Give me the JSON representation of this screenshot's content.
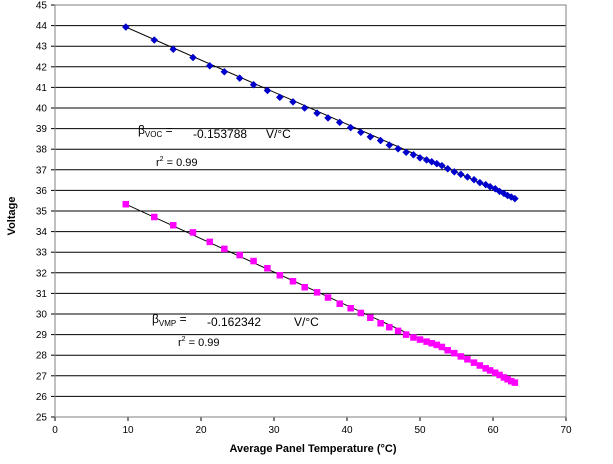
{
  "chart_data": {
    "type": "scatter",
    "xlabel": "Average Panel Temperature (°C)",
    "ylabel": "Voltage",
    "xlim": [
      0,
      70
    ],
    "ylim": [
      25,
      45
    ],
    "x_ticks": [
      0,
      10,
      20,
      30,
      40,
      50,
      60,
      70
    ],
    "y_ticks": [
      25,
      26,
      27,
      28,
      29,
      30,
      31,
      32,
      33,
      34,
      35,
      36,
      37,
      38,
      39,
      40,
      41,
      42,
      43,
      44,
      45
    ],
    "grid": "horizontal",
    "series": [
      {
        "color": "#0000cc",
        "marker": "diamond",
        "trendline": {
          "x": [
            9.7,
            63.2
          ],
          "y": [
            43.93,
            35.6
          ]
        },
        "x": [
          9.7,
          13.6,
          16.2,
          18.9,
          21.2,
          23.2,
          25.3,
          27.2,
          29.1,
          30.8,
          32.6,
          34.2,
          35.9,
          37.4,
          39.0,
          40.5,
          41.9,
          43.2,
          44.6,
          45.8,
          47.0,
          48.1,
          49.1,
          50.0,
          50.9,
          51.6,
          52.3,
          53.0,
          53.8,
          54.7,
          55.6,
          56.5,
          57.4,
          58.2,
          59.0,
          59.6,
          60.3,
          60.9,
          61.5,
          62.0,
          62.5,
          63.0
        ],
        "y": [
          43.93,
          43.3,
          42.85,
          42.45,
          42.05,
          41.76,
          41.45,
          41.13,
          40.85,
          40.52,
          40.3,
          40.0,
          39.75,
          39.52,
          39.3,
          39.05,
          38.82,
          38.6,
          38.42,
          38.2,
          38.02,
          37.85,
          37.73,
          37.58,
          37.48,
          37.39,
          37.3,
          37.2,
          37.05,
          36.9,
          36.78,
          36.65,
          36.52,
          36.38,
          36.28,
          36.18,
          36.08,
          35.95,
          35.85,
          35.75,
          35.68,
          35.6
        ]
      },
      {
        "color": "#ff00ff",
        "marker": "square",
        "trendline": {
          "x": [
            9.7,
            63.2
          ],
          "y": [
            35.33,
            26.65
          ]
        },
        "x": [
          9.7,
          13.6,
          16.2,
          18.9,
          21.2,
          23.2,
          25.3,
          27.2,
          29.1,
          30.8,
          32.6,
          34.2,
          35.9,
          37.4,
          39.0,
          40.5,
          41.9,
          43.2,
          44.6,
          45.8,
          47.0,
          48.1,
          49.1,
          50.0,
          50.9,
          51.6,
          52.3,
          53.0,
          53.8,
          54.7,
          55.6,
          56.5,
          57.4,
          58.2,
          59.0,
          59.6,
          60.3,
          60.9,
          61.5,
          62.0,
          62.5,
          63.0
        ],
        "y": [
          35.33,
          34.71,
          34.31,
          33.96,
          33.5,
          33.16,
          32.86,
          32.57,
          32.22,
          31.88,
          31.59,
          31.3,
          31.05,
          30.8,
          30.5,
          30.28,
          30.05,
          29.82,
          29.55,
          29.36,
          29.18,
          29.0,
          28.86,
          28.76,
          28.66,
          28.58,
          28.5,
          28.4,
          28.24,
          28.1,
          27.94,
          27.8,
          27.64,
          27.5,
          27.36,
          27.26,
          27.15,
          27.04,
          26.92,
          26.83,
          26.74,
          26.67
        ]
      }
    ],
    "annotations": {
      "voc": {
        "beta": "β",
        "sub": "VOC",
        "eq": " =",
        "value": "-0.153788",
        "unit": "V/°C",
        "r": "r",
        "sup": "2",
        "r_rest": " =  0.99"
      },
      "vmp": {
        "beta": "β",
        "sub": "VMP",
        "eq": " =",
        "value": "-0.162342",
        "unit": "V/°C",
        "r": "r",
        "sup": "2",
        "r_rest": " = 0.99"
      }
    }
  }
}
